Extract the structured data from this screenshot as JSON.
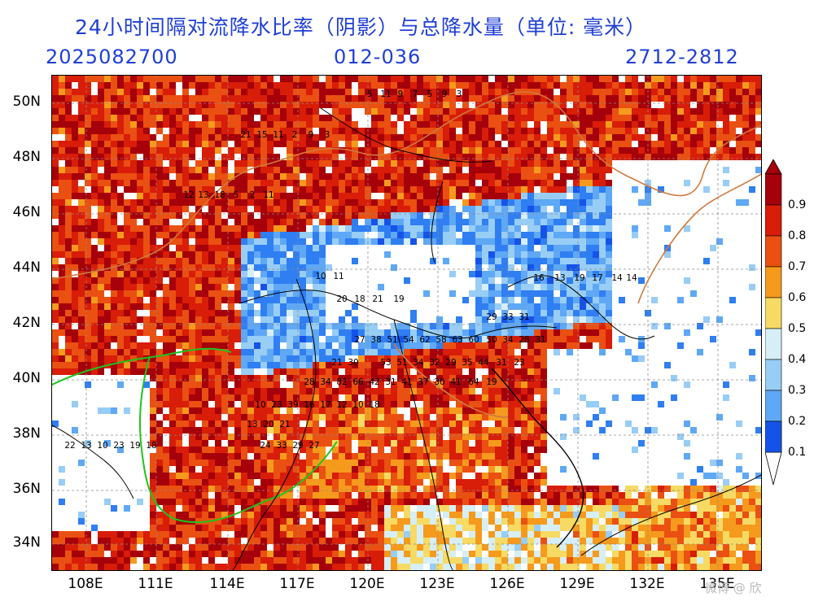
{
  "header": {
    "title": "24小时间隔对流降水比率（阴影）与总降水量（单位: 毫米）",
    "init_time": "2025082700",
    "forecast_hours": "012-036",
    "valid_period": "2712-2812"
  },
  "axes": {
    "lat_labels": [
      "50N",
      "48N",
      "46N",
      "44N",
      "42N",
      "40N",
      "38N",
      "36N",
      "34N"
    ],
    "lon_labels": [
      "108E",
      "111E",
      "114E",
      "117E",
      "120E",
      "123E",
      "126E",
      "129E",
      "132E",
      "135E"
    ]
  },
  "colorbar": {
    "levels": [
      "0.1",
      "0.2",
      "0.3",
      "0.4",
      "0.5",
      "0.6",
      "0.7",
      "0.8",
      "0.9"
    ],
    "colors": [
      "#1553e8",
      "#2f7ef2",
      "#5fa8f5",
      "#98cdf5",
      "#d6eef6",
      "#f6da63",
      "#f59a1c",
      "#ea5011",
      "#d81d08",
      "#a6000a"
    ]
  },
  "map_text": {
    "precip_values": [
      {
        "t": "5",
        "c": 0
      },
      {
        "t": "11",
        "c": 0
      },
      {
        "t": "9",
        "c": 0
      },
      {
        "t": "7",
        "c": 0
      },
      {
        "t": "5",
        "c": 0
      },
      {
        "t": "9",
        "c": 0
      },
      {
        "t": "3",
        "c": 0
      },
      {
        "t": "21",
        "c": 0
      },
      {
        "t": "15",
        "c": 0
      },
      {
        "t": "11",
        "c": 0
      },
      {
        "t": "2",
        "c": 0
      },
      {
        "t": "9",
        "c": 0
      },
      {
        "t": "3",
        "c": 0
      },
      {
        "t": "12",
        "c": 0
      },
      {
        "t": "13",
        "c": 0
      },
      {
        "t": "18",
        "c": 0
      },
      {
        "t": "5",
        "c": 0
      },
      {
        "t": "2",
        "c": 0
      },
      {
        "t": "11",
        "c": 0
      },
      {
        "t": "10",
        "c": 0
      },
      {
        "t": "11",
        "c": 0
      },
      {
        "t": "16",
        "c": 0
      },
      {
        "t": "13",
        "c": 0
      },
      {
        "t": "19",
        "c": 0
      },
      {
        "t": "17",
        "c": 0
      },
      {
        "t": "14",
        "c": 0
      },
      {
        "t": "14",
        "c": 0
      },
      {
        "t": "20",
        "c": 0
      },
      {
        "t": "18",
        "c": 0
      },
      {
        "t": "21",
        "c": 0
      },
      {
        "t": "19",
        "c": 0
      },
      {
        "t": "29",
        "c": 0
      },
      {
        "t": "33",
        "c": 0
      },
      {
        "t": "31",
        "c": 0
      },
      {
        "t": "27",
        "c": 0
      },
      {
        "t": "38",
        "c": 0
      },
      {
        "t": "51",
        "c": 0
      },
      {
        "t": "54",
        "c": 0
      },
      {
        "t": "62",
        "c": 0
      },
      {
        "t": "58",
        "c": 0
      },
      {
        "t": "63",
        "c": 0
      },
      {
        "t": "60",
        "c": 0
      },
      {
        "t": "50",
        "c": 0
      },
      {
        "t": "34",
        "c": 0
      },
      {
        "t": "28",
        "c": 0
      },
      {
        "t": "31",
        "c": 0
      },
      {
        "t": "21",
        "c": 0
      },
      {
        "t": "30",
        "c": 0
      },
      {
        "t": "53",
        "c": 0
      },
      {
        "t": "51",
        "c": 0
      },
      {
        "t": "34",
        "c": 0
      },
      {
        "t": "32",
        "c": 0
      },
      {
        "t": "29",
        "c": 0
      },
      {
        "t": "35",
        "c": 0
      },
      {
        "t": "44",
        "c": 0
      },
      {
        "t": "31",
        "c": 0
      },
      {
        "t": "23",
        "c": 0
      },
      {
        "t": "28",
        "c": 0
      },
      {
        "t": "34",
        "c": 0
      },
      {
        "t": "82",
        "c": 0
      },
      {
        "t": "66",
        "c": 0
      },
      {
        "t": "42",
        "c": 0
      },
      {
        "t": "31",
        "c": 0
      },
      {
        "t": "41",
        "c": 0
      },
      {
        "t": "37",
        "c": 0
      },
      {
        "t": "30",
        "c": 0
      },
      {
        "t": "41",
        "c": 0
      },
      {
        "t": "64",
        "c": 0
      },
      {
        "t": "19",
        "c": 0
      },
      {
        "t": "10",
        "c": 0
      },
      {
        "t": "23",
        "c": 0
      },
      {
        "t": "39",
        "c": 0
      },
      {
        "t": "16",
        "c": 0
      },
      {
        "t": "17",
        "c": 0
      },
      {
        "t": "12",
        "c": 0
      },
      {
        "t": "10",
        "c": 0
      },
      {
        "t": "18",
        "c": 0
      },
      {
        "t": "13",
        "c": 0
      },
      {
        "t": "20",
        "c": 0
      },
      {
        "t": "21",
        "c": 0
      },
      {
        "t": "24",
        "c": 0
      },
      {
        "t": "33",
        "c": 0
      },
      {
        "t": "29",
        "c": 0
      },
      {
        "t": "27",
        "c": 0
      },
      {
        "t": "22",
        "c": 0
      },
      {
        "t": "13",
        "c": 0
      },
      {
        "t": "10",
        "c": 0
      },
      {
        "t": "23",
        "c": 0
      },
      {
        "t": "19",
        "c": 0
      },
      {
        "t": "18",
        "c": 0
      },
      {
        "t": "13",
        "c": 0
      }
    ],
    "watermark": "微博 @ 欣"
  }
}
